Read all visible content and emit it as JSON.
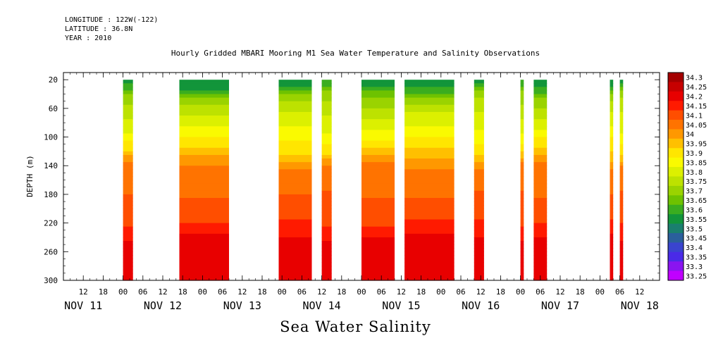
{
  "header": {
    "longitude": "LONGITUDE : 122W(-122)",
    "latitude": "LATITUDE : 36.8N",
    "year": "YEAR : 2010"
  },
  "chart_data": {
    "type": "heatmap",
    "title": "Hourly Gridded MBARI Mooring M1 Sea Water Temperature and Salinity Observations",
    "subtitle": "Sea Water Salinity",
    "ylabel": "DEPTH (m)",
    "xlabel": "",
    "ylim": [
      300,
      10
    ],
    "y_ticks": [
      20,
      60,
      100,
      140,
      180,
      220,
      260,
      300
    ],
    "x_range_hours": [
      "2010-11-11T06:00",
      "2010-11-18T18:00"
    ],
    "x_hour_ticks": [
      {
        "t": "2010-11-11T12:00",
        "label": "12"
      },
      {
        "t": "2010-11-11T18:00",
        "label": "18"
      },
      {
        "t": "2010-11-12T00:00",
        "label": "00"
      },
      {
        "t": "2010-11-12T06:00",
        "label": "06"
      },
      {
        "t": "2010-11-12T12:00",
        "label": "12"
      },
      {
        "t": "2010-11-12T18:00",
        "label": "18"
      },
      {
        "t": "2010-11-13T00:00",
        "label": "00"
      },
      {
        "t": "2010-11-13T06:00",
        "label": "06"
      },
      {
        "t": "2010-11-13T12:00",
        "label": "12"
      },
      {
        "t": "2010-11-13T18:00",
        "label": "18"
      },
      {
        "t": "2010-11-14T00:00",
        "label": "00"
      },
      {
        "t": "2010-11-14T06:00",
        "label": "06"
      },
      {
        "t": "2010-11-14T12:00",
        "label": "12"
      },
      {
        "t": "2010-11-14T18:00",
        "label": "18"
      },
      {
        "t": "2010-11-15T00:00",
        "label": "00"
      },
      {
        "t": "2010-11-15T06:00",
        "label": "06"
      },
      {
        "t": "2010-11-15T12:00",
        "label": "12"
      },
      {
        "t": "2010-11-15T18:00",
        "label": "18"
      },
      {
        "t": "2010-11-16T00:00",
        "label": "00"
      },
      {
        "t": "2010-11-16T06:00",
        "label": "06"
      },
      {
        "t": "2010-11-16T12:00",
        "label": "12"
      },
      {
        "t": "2010-11-16T18:00",
        "label": "18"
      },
      {
        "t": "2010-11-17T00:00",
        "label": "00"
      },
      {
        "t": "2010-11-17T06:00",
        "label": "06"
      },
      {
        "t": "2010-11-17T12:00",
        "label": "12"
      },
      {
        "t": "2010-11-17T18:00",
        "label": "18"
      },
      {
        "t": "2010-11-18T00:00",
        "label": "00"
      },
      {
        "t": "2010-11-18T06:00",
        "label": "06"
      },
      {
        "t": "2010-11-18T12:00",
        "label": "12"
      }
    ],
    "x_day_labels": [
      {
        "t": "2010-11-11T12:00",
        "label": "NOV 11"
      },
      {
        "t": "2010-11-12T12:00",
        "label": "NOV 12"
      },
      {
        "t": "2010-11-13T12:00",
        "label": "NOV 13"
      },
      {
        "t": "2010-11-14T12:00",
        "label": "NOV 14"
      },
      {
        "t": "2010-11-15T12:00",
        "label": "NOV 15"
      },
      {
        "t": "2010-11-16T12:00",
        "label": "NOV 16"
      },
      {
        "t": "2010-11-17T12:00",
        "label": "NOV 17"
      },
      {
        "t": "2010-11-18T12:00",
        "label": "NOV 18"
      }
    ],
    "colorbar": {
      "levels": [
        "34.3",
        "34.25",
        "34.2",
        "34.15",
        "34.1",
        "34.05",
        "34",
        "33.95",
        "33.9",
        "33.85",
        "33.8",
        "33.75",
        "33.7",
        "33.65",
        "33.6",
        "33.55",
        "33.5",
        "33.45",
        "33.4",
        "33.35",
        "33.3",
        "33.25"
      ],
      "colors": [
        "#a40000",
        "#c70000",
        "#e80000",
        "#ff1a00",
        "#ff4e00",
        "#ff7300",
        "#ff9800",
        "#ffc000",
        "#ffe600",
        "#fafa00",
        "#dcf000",
        "#bde200",
        "#9ad300",
        "#6ec200",
        "#3aad1f",
        "#12953a",
        "#1a7f6e",
        "#2a5f9c",
        "#3a44cf",
        "#4a2ae8",
        "#8a14f0",
        "#c000ff"
      ]
    },
    "data_segments": [
      {
        "start": "2010-11-12T00:00",
        "end": "2010-11-12T03:00"
      },
      {
        "start": "2010-11-12T17:00",
        "end": "2010-11-13T08:00"
      },
      {
        "start": "2010-11-13T23:00",
        "end": "2010-11-14T09:00"
      },
      {
        "start": "2010-11-14T12:00",
        "end": "2010-11-14T15:00"
      },
      {
        "start": "2010-11-15T00:00",
        "end": "2010-11-15T10:00"
      },
      {
        "start": "2010-11-15T13:00",
        "end": "2010-11-16T04:00"
      },
      {
        "start": "2010-11-16T10:00",
        "end": "2010-11-16T13:00"
      },
      {
        "start": "2010-11-17T00:00",
        "end": "2010-11-17T01:00"
      },
      {
        "start": "2010-11-17T04:00",
        "end": "2010-11-17T08:00"
      },
      {
        "start": "2010-11-18T03:00",
        "end": "2010-11-18T04:00"
      },
      {
        "start": "2010-11-18T06:00",
        "end": "2010-11-18T07:00"
      }
    ],
    "salinity_profile_depths": [
      20,
      30,
      40,
      60,
      80,
      100,
      120,
      140,
      180,
      220,
      240,
      260,
      280,
      300
    ],
    "salinity_profile_values": [
      33.55,
      33.62,
      33.7,
      33.78,
      33.82,
      33.88,
      33.95,
      34.05,
      34.1,
      34.15,
      34.2,
      34.25,
      34.22,
      34.2
    ]
  }
}
